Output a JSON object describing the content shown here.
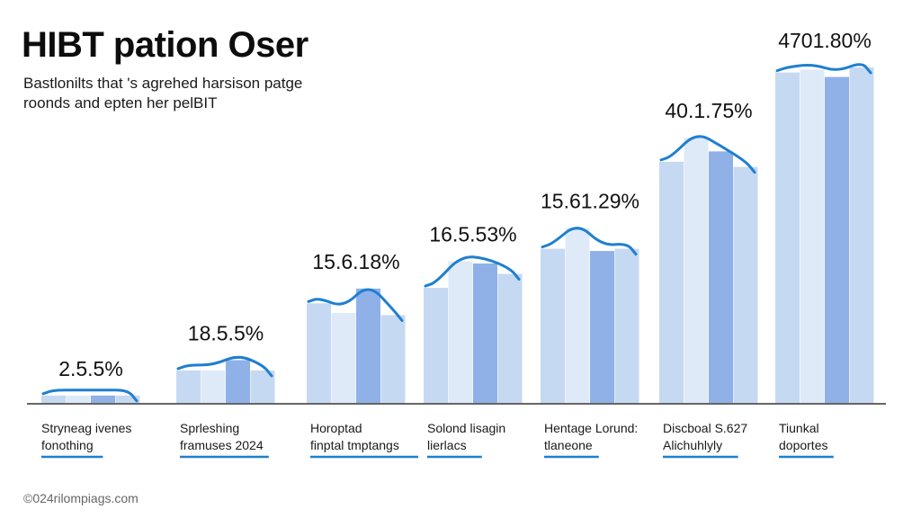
{
  "chart_data": {
    "type": "bar",
    "title": "HIBT pation Oser",
    "subtitle_lines": [
      "Bastlonilts that 's agrehed harsison patge",
      "roonds and epten her pelBIT"
    ],
    "categories": [
      [
        "Stryneag ivenes",
        "fonothing"
      ],
      [
        "Sprleshing",
        "framuses 2024"
      ],
      [
        "Horoptad",
        "finptal tmptangs"
      ],
      [
        "Solond lisagin",
        "lierlacs"
      ],
      [
        "Hentage Lorund:",
        "tlaneone"
      ],
      [
        "Discboal S.627",
        "Alichuhlyly"
      ],
      [
        "Tiunkal",
        "doportes"
      ]
    ],
    "value_labels": [
      "2.5.5%",
      "18.5.5%",
      "15.6.18%",
      "16.5.53%",
      "15.61.29%",
      "40.1.75%",
      "4701.80%"
    ],
    "series_values": [
      [
        1,
        1,
        1,
        1
      ],
      [
        4.4,
        4.4,
        5.8,
        4.4
      ],
      [
        13.5,
        12.2,
        15.5,
        11.9
      ],
      [
        15.6,
        19.2,
        18.9,
        17.5
      ],
      [
        20.9,
        23.7,
        20.6,
        20.9
      ],
      [
        32.7,
        36,
        34.1,
        32
      ],
      [
        44.8,
        45.2,
        44.2,
        45.5
      ]
    ],
    "ylim": [
      0,
      50
    ],
    "grid": false,
    "legend": "none"
  },
  "footer": "©024rilompiags.com",
  "colors": {
    "bar_light": "#c5d9f2",
    "bar_pale": "#dfeaf8",
    "bar_mid": "#8fb1e8",
    "curve": "#1f7fd0",
    "underline": "#1f7fd0",
    "baseline": "#333333"
  }
}
